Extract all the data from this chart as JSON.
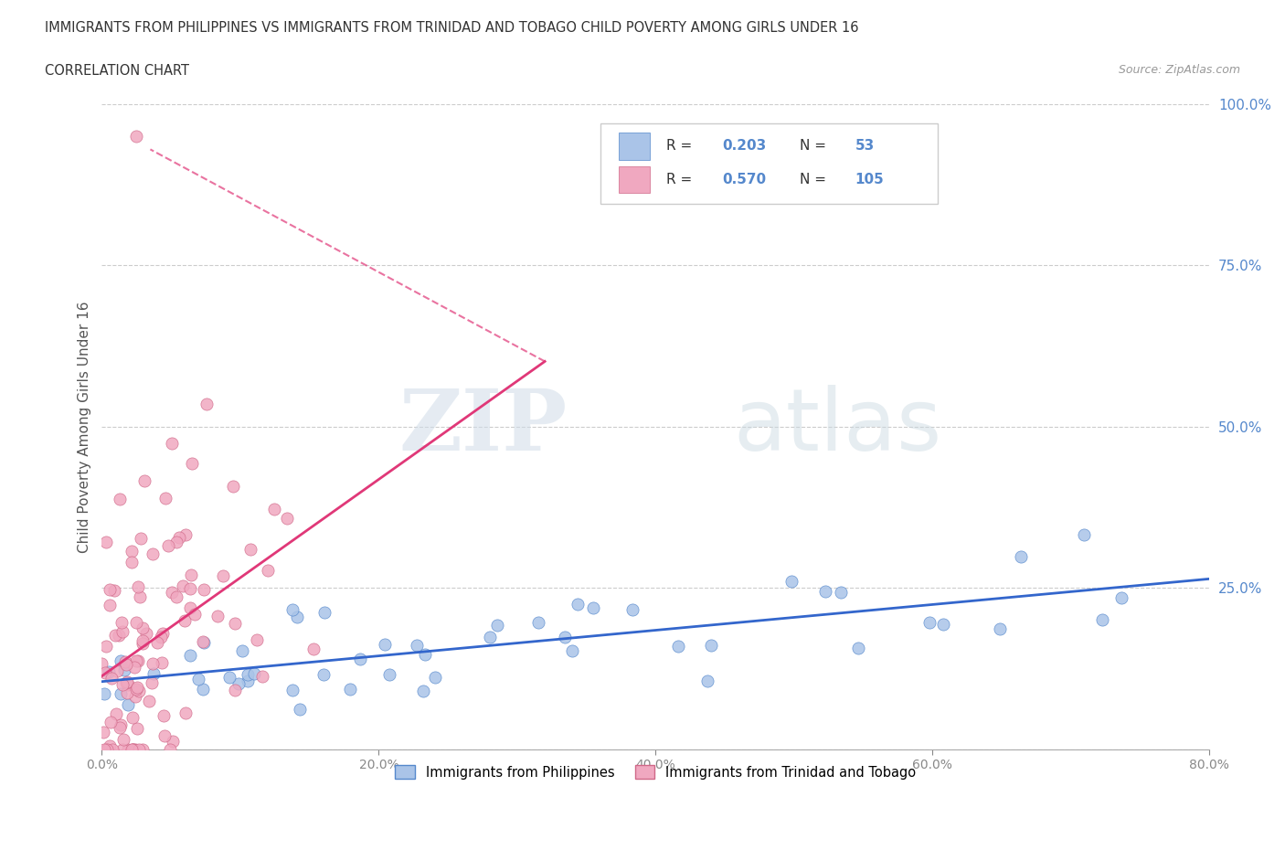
{
  "title": "IMMIGRANTS FROM PHILIPPINES VS IMMIGRANTS FROM TRINIDAD AND TOBAGO CHILD POVERTY AMONG GIRLS UNDER 16",
  "subtitle": "CORRELATION CHART",
  "source": "Source: ZipAtlas.com",
  "ylabel": "Child Poverty Among Girls Under 16",
  "xlim": [
    0,
    0.8
  ],
  "ylim": [
    0,
    1.0
  ],
  "series1_color": "#aac4e8",
  "series2_color": "#f0a8c0",
  "series1_edge": "#5588cc",
  "series2_edge": "#d06888",
  "trend1_color": "#3366cc",
  "trend2_color": "#e03878",
  "legend_R1": "0.203",
  "legend_N1": "53",
  "legend_R2": "0.570",
  "legend_N2": "105",
  "legend_label1": "Immigrants from Philippines",
  "legend_label2": "Immigrants from Trinidad and Tobago",
  "watermark_zip": "ZIP",
  "watermark_atlas": "atlas",
  "background_color": "#ffffff",
  "grid_color": "#cccccc",
  "tick_color_y": "#5588cc",
  "tick_color_x": "#888888"
}
